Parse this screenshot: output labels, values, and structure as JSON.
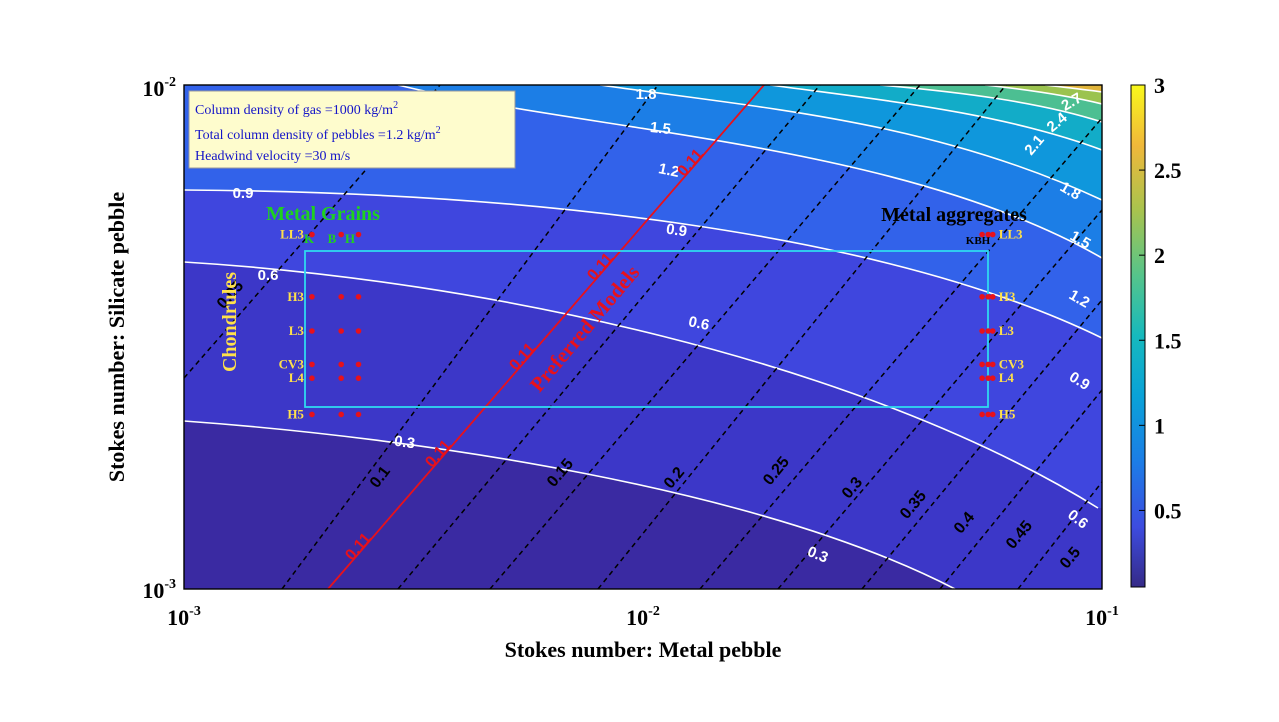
{
  "chart_data": {
    "type": "contour",
    "xlabel": "Stokes number: Metal pebble",
    "ylabel": "Stokes number: Silicate pebble",
    "xscale": "log",
    "yscale": "log",
    "xlim": [
      0.001,
      0.1
    ],
    "ylim": [
      0.001,
      0.01
    ],
    "x_ticks": [
      {
        "base": "10",
        "exp": "-3"
      },
      {
        "base": "10",
        "exp": "-2"
      },
      {
        "base": "10",
        "exp": "-1"
      }
    ],
    "y_ticks": [
      {
        "base": "10",
        "exp": "-3"
      },
      {
        "base": "10",
        "exp": "-2"
      }
    ],
    "colorbar": {
      "range": [
        0.05,
        3
      ],
      "ticks": [
        "0.5",
        "1",
        "1.5",
        "2",
        "2.5",
        "3"
      ],
      "colormap": "parula"
    },
    "info_box": {
      "gas": {
        "prefix": "Column density of gas =1000 kg/m",
        "sup": "2"
      },
      "pebbles": {
        "prefix": "Total column density of pebbles =1.2 kg/m",
        "sup": "2"
      },
      "wind": "Headwind velocity =30 m/s"
    },
    "white_contours": [
      {
        "level": "0.3",
        "labels": [
          "0.3",
          "0.3"
        ]
      },
      {
        "level": "0.6",
        "labels": [
          "0.6",
          "0.6",
          "0.6"
        ]
      },
      {
        "level": "0.9",
        "labels": [
          "0.9",
          "0.9",
          "0.9"
        ]
      },
      {
        "level": "1.2",
        "labels": [
          "1.2",
          "1.2"
        ]
      },
      {
        "level": "1.5",
        "labels": [
          "1.5",
          "1.5"
        ]
      },
      {
        "level": "1.8",
        "labels": [
          "1.8",
          "1.8"
        ]
      },
      {
        "level": "2.1",
        "labels": [
          "2.1"
        ]
      },
      {
        "level": "2.4",
        "labels": [
          "2.4"
        ]
      },
      {
        "level": "2.7",
        "labels": [
          "2.7"
        ]
      }
    ],
    "dashed_contours": [
      "0.05",
      "0.1",
      "0.15",
      "0.2",
      "0.25",
      "0.3",
      "0.35",
      "0.4",
      "0.45",
      "0.5"
    ],
    "red_contour": {
      "level": "0.11",
      "labels": [
        "0.11",
        "0.11",
        "0.11",
        "0.11",
        "0.11"
      ]
    },
    "annotations": {
      "preferred": "Preferred Models",
      "metal_grains": "Metal Grains",
      "metal_aggregates": "Metal aggregates",
      "chondrules": "Chondrules",
      "grain_types": [
        "K",
        "B",
        "H"
      ],
      "aggregate_types": "KBH"
    },
    "chondrite_rows": [
      {
        "label": "LL3",
        "y": 0.00505
      },
      {
        "label": "H3",
        "y": 0.0038
      },
      {
        "label": "L3",
        "y": 0.00325
      },
      {
        "label": "CV3",
        "y": 0.00279
      },
      {
        "label": "L4",
        "y": 0.00262
      },
      {
        "label": "H5",
        "y": 0.00222
      }
    ],
    "grain_x": [
      0.0019,
      0.0022,
      0.0024
    ],
    "aggregate_x": [
      0.0548,
      0.0565,
      0.0578
    ],
    "box": {
      "x": [
        0.00185,
        0.059
      ],
      "y": [
        0.00218,
        0.00512
      ]
    }
  }
}
